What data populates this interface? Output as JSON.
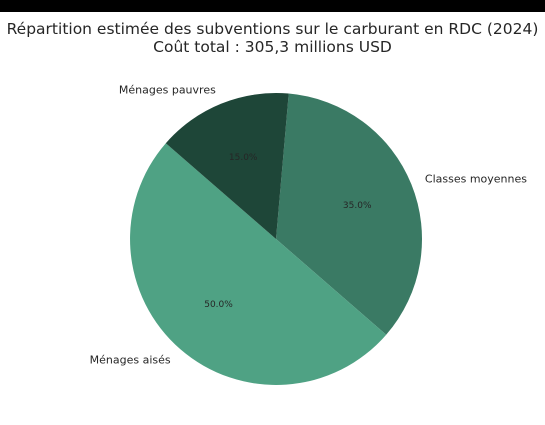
{
  "chart_data": {
    "type": "pie",
    "title": "Répartition estimée des subventions sur le carburant en RDC (2024)",
    "subtitle": "Coût total : 305,3 millions USD",
    "slices": [
      {
        "label": "Classes moyennes",
        "value": 35.0,
        "pct_label": "35.0%",
        "color": "#3a7a64"
      },
      {
        "label": "Ménages aisés",
        "value": 50.0,
        "pct_label": "50.0%",
        "color": "#4fa284"
      },
      {
        "label": "Ménages pauvres",
        "value": 15.0,
        "pct_label": "15.0%",
        "color": "#1e4638"
      }
    ],
    "start_angle_deg": 85,
    "direction": "clockwise",
    "legend": "none"
  },
  "topbar": {
    "color": "#000000"
  }
}
